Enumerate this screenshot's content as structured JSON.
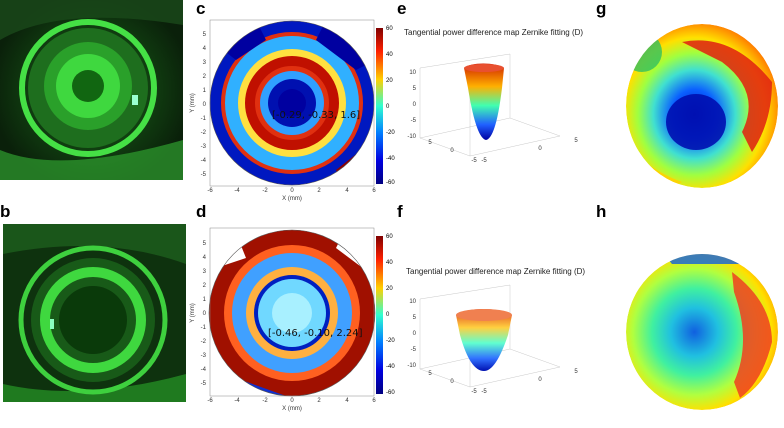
{
  "labels": {
    "a": "a",
    "b": "b",
    "c": "c",
    "d": "d",
    "e": "e",
    "f": "f",
    "g": "g",
    "h": "h"
  },
  "map_title": "Tangential power difference map Zernike fitting (D)",
  "colors": {
    "fluorescein_bg": "#0c2a0c",
    "fluorescein_green": "#3cd23c",
    "cmap_low": "#0000a0",
    "cmap_mid": "#30ffd0",
    "cmap_high": "#a00000"
  },
  "chart_data": [
    {
      "panel": "c",
      "type": "heatmap",
      "title": "",
      "xlabel": "X (mm)",
      "ylabel": "Y (mm)",
      "xlim": [
        -6,
        6
      ],
      "ylim": [
        -6,
        6
      ],
      "x_ticks": [
        "-6",
        "-4",
        "-2",
        "0",
        "2",
        "4",
        "6"
      ],
      "y_ticks": [
        "5",
        "4",
        "3",
        "2",
        "1",
        "0",
        "-1",
        "-2",
        "-3",
        "-4",
        "-5"
      ],
      "colorbar_ticks": [
        "60",
        "40",
        "20",
        "0",
        "-20",
        "-40",
        "-60"
      ],
      "colorbar_range": [
        -60,
        60
      ],
      "annotation": "[-0.29, -0.33, 1.6]"
    },
    {
      "panel": "d",
      "type": "heatmap",
      "title": "",
      "xlabel": "X (mm)",
      "ylabel": "Y (mm)",
      "xlim": [
        -6,
        6
      ],
      "ylim": [
        -6,
        6
      ],
      "x_ticks": [
        "-6",
        "-4",
        "-2",
        "0",
        "2",
        "4",
        "6"
      ],
      "y_ticks": [
        "5",
        "4",
        "3",
        "2",
        "1",
        "0",
        "-1",
        "-2",
        "-3",
        "-4",
        "-5"
      ],
      "colorbar_ticks": [
        "60",
        "40",
        "20",
        "0",
        "-20",
        "-40",
        "-60"
      ],
      "colorbar_range": [
        -60,
        60
      ],
      "annotation": "[-0.46, -0.10, 2.24]"
    },
    {
      "panel": "e",
      "type": "area",
      "title": "Tangential power difference map Zernike fitting (D)",
      "z_ticks": [
        "10",
        "5",
        "0",
        "-5",
        "-10"
      ],
      "x_ticks": [
        "5",
        "0",
        "-5"
      ],
      "y_ticks": [
        "-5",
        "0",
        "5"
      ]
    },
    {
      "panel": "f",
      "type": "area",
      "title": "Tangential power difference map Zernike fitting (D)",
      "z_ticks": [
        "10",
        "5",
        "0",
        "-5",
        "-10"
      ],
      "x_ticks": [
        "5",
        "0",
        "-5"
      ],
      "y_ticks": [
        "-5",
        "0",
        "5"
      ]
    }
  ]
}
